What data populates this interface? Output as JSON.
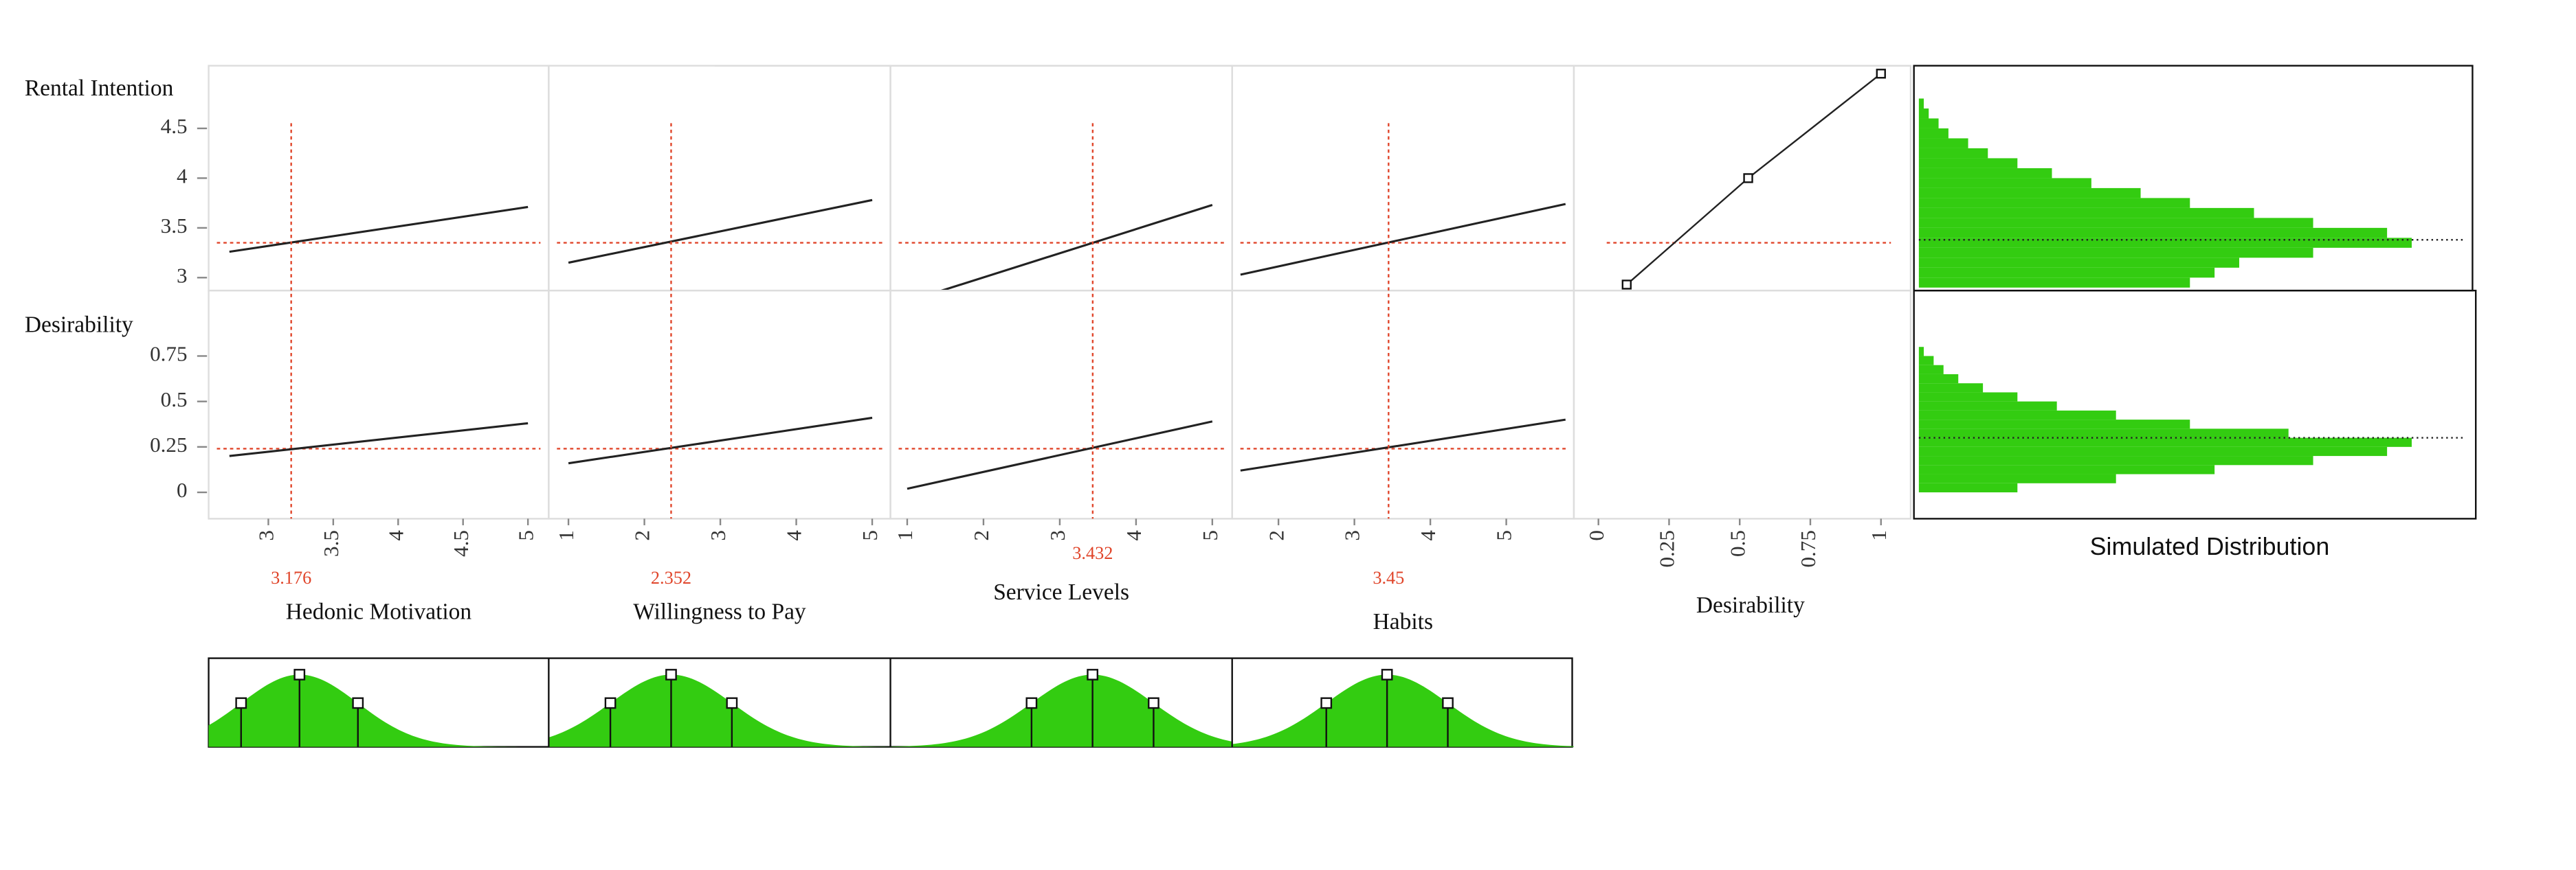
{
  "responses": [
    {
      "label": "Rental Intention",
      "ylim": [
        2.87,
        5.13
      ],
      "yticks": [
        3,
        3.5,
        4,
        4.5
      ],
      "current": 3.35
    },
    {
      "label": "Desirability",
      "ylim": [
        -0.145,
        1.11
      ],
      "yticks": [
        0,
        0.25,
        0.5,
        0.75
      ],
      "current": 0.24
    }
  ],
  "factors": [
    {
      "label": "Hedonic Motivation",
      "current": 3.176,
      "xlim": [
        2.54,
        5.16
      ],
      "xticks": [
        3,
        3.5,
        4,
        4.5,
        5
      ],
      "profile_x": [
        2.7,
        5
      ],
      "profiles": [
        [
          3.26,
          3.71
        ],
        [
          0.2,
          0.38
        ]
      ],
      "distribution": {
        "mean": 3.24,
        "sd": 0.45
      }
    },
    {
      "label": "Willingness to Pay",
      "current": 2.352,
      "xlim": [
        0.74,
        5.24
      ],
      "xticks": [
        1,
        2,
        3,
        4,
        5
      ],
      "profile_x": [
        1,
        5
      ],
      "profiles": [
        [
          3.15,
          3.78
        ],
        [
          0.16,
          0.41
        ]
      ],
      "distribution": {
        "mean": 2.352,
        "sd": 0.8
      }
    },
    {
      "label": "Service Levels",
      "current": 3.432,
      "xlim": [
        0.78,
        5.26
      ],
      "xticks": [
        1,
        2,
        3,
        4,
        5
      ],
      "profile_x": [
        1,
        5
      ],
      "profiles": [
        [
          2.76,
          3.73
        ],
        [
          0.02,
          0.39
        ]
      ],
      "distribution": {
        "mean": 3.43,
        "sd": 0.8
      }
    },
    {
      "label": "Habits",
      "current": 3.45,
      "xlim": [
        1.39,
        5.89
      ],
      "xticks": [
        2,
        3,
        4,
        5
      ],
      "profile_x": [
        1.5,
        5.78
      ],
      "profiles": [
        [
          3.03,
          3.74
        ],
        [
          0.12,
          0.4
        ]
      ],
      "distribution": {
        "mean": 3.43,
        "sd": 0.8
      }
    }
  ],
  "desirability_function": {
    "label": "Desirability",
    "xlim": [
      -0.087,
      1.105
    ],
    "xticks": [
      0,
      0.25,
      0.5,
      0.75,
      1
    ],
    "x": [
      0.1,
      0.53,
      1
    ],
    "y": [
      2.93,
      4,
      5.05
    ]
  },
  "simulated_distribution": {
    "label": "Simulated Distribution",
    "color": "#33cc11",
    "count_lim": [
      0,
      100
    ],
    "histograms": [
      {
        "bins": [
          2.9,
          3.0,
          3.1,
          3.2,
          3.3,
          3.4,
          3.5,
          3.6,
          3.7,
          3.8,
          3.9,
          4.0,
          4.1,
          4.2,
          4.3,
          4.4,
          4.5,
          4.6,
          4.7,
          4.8
        ],
        "counts": [
          55,
          60,
          65,
          80,
          100,
          95,
          80,
          68,
          55,
          45,
          35,
          27,
          20,
          14,
          10,
          6,
          4,
          2,
          1
        ],
        "mean": 3.38
      },
      {
        "bins": [
          0,
          0.05,
          0.1,
          0.15,
          0.2,
          0.25,
          0.3,
          0.35,
          0.4,
          0.45,
          0.5,
          0.55,
          0.6,
          0.65,
          0.7,
          0.75,
          0.8
        ],
        "counts": [
          20,
          40,
          60,
          80,
          95,
          100,
          75,
          55,
          40,
          28,
          20,
          13,
          8,
          5,
          3,
          1
        ],
        "mean": 0.3
      }
    ]
  }
}
